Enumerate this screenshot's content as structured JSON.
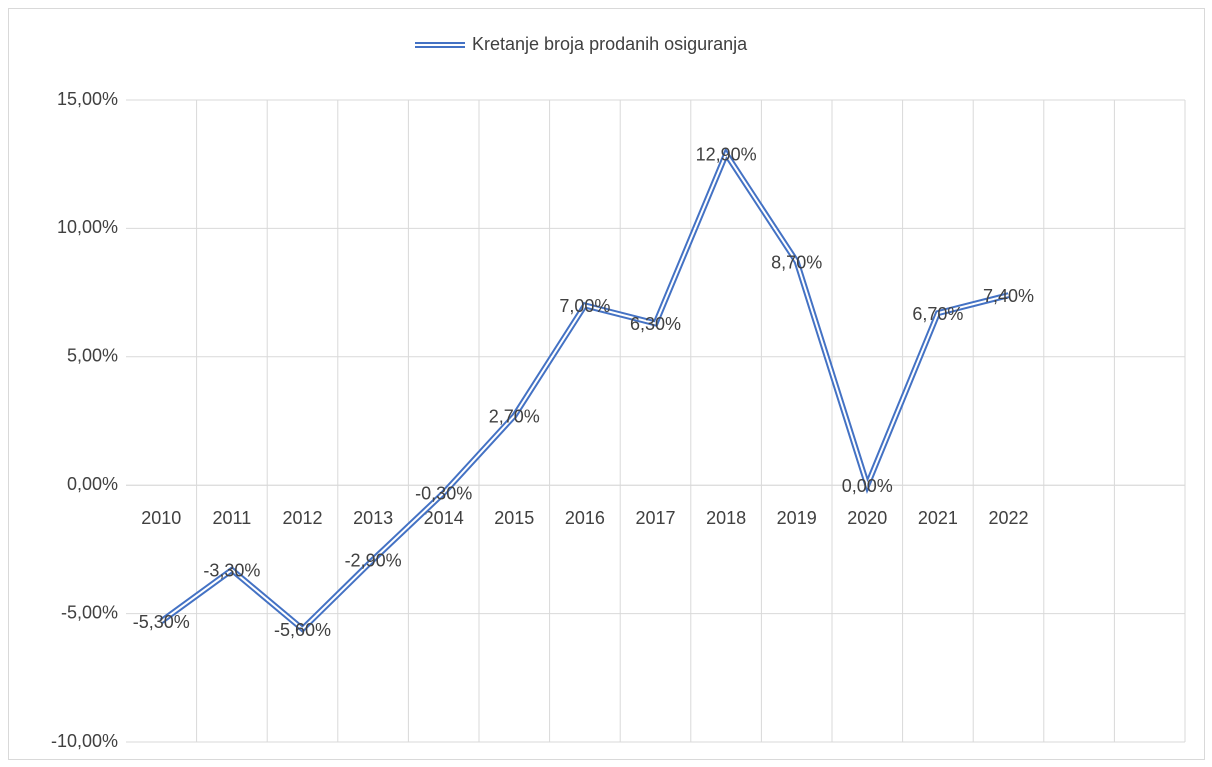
{
  "chart_data": {
    "type": "line",
    "categories": [
      "2010",
      "2011",
      "2012",
      "2013",
      "2014",
      "2015",
      "2016",
      "2017",
      "2018",
      "2019",
      "2020",
      "2021",
      "2022",
      null,
      null
    ],
    "series": [
      {
        "name": "Kretanje broja prodanih osiguranja",
        "color": "#4472c4",
        "values": [
          -5.3,
          -3.3,
          -5.6,
          -2.9,
          -0.3,
          2.7,
          7.0,
          6.3,
          12.9,
          8.7,
          0.0,
          6.7,
          7.4,
          null,
          null
        ],
        "value_labels": [
          "-5,30%",
          "-3,30%",
          "-5,60%",
          "-2,90%",
          "-0,30%",
          "2,70%",
          "7,00%",
          "6,30%",
          "12,90%",
          "8,70%",
          "0,00%",
          "6,70%",
          "7,40%",
          null,
          null
        ]
      }
    ],
    "ylim": [
      -10,
      15
    ],
    "yticks": [
      {
        "value": -10,
        "label": "-10,00%"
      },
      {
        "value": -5,
        "label": "-5,00%"
      },
      {
        "value": 0,
        "label": "0,00%"
      },
      {
        "value": 5,
        "label": "5,00%"
      },
      {
        "value": 10,
        "label": "10,00%"
      },
      {
        "value": 15,
        "label": "15,00%"
      }
    ],
    "grid": true,
    "legend": "top"
  }
}
